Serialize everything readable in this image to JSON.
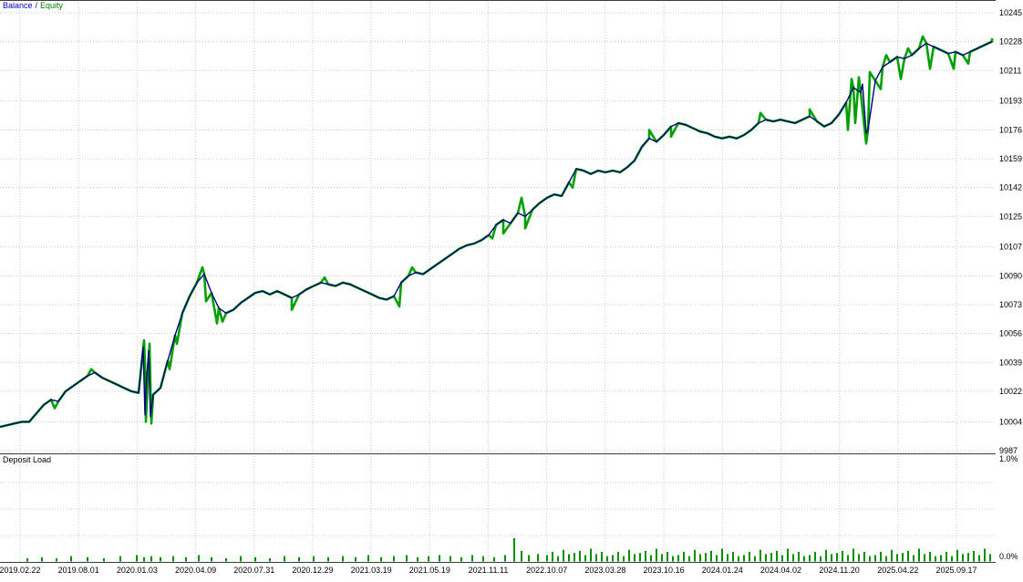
{
  "legend": {
    "balance_label": "Balance",
    "separator": "/",
    "equity_label": "Equity"
  },
  "deposit_panel": {
    "title": "Deposit Load",
    "max_label": "1.0%",
    "min_label": "0.0%"
  },
  "colors": {
    "balance": "#000080",
    "equity": "#00a000",
    "balance_legend": "#0000cc",
    "equity_legend": "#008000",
    "grid": "#c8c8c8",
    "border": "#3c3c3c",
    "bar": "#009000",
    "text": "#000000",
    "background": "#ffffff"
  },
  "chart_data": {
    "type": "line",
    "legend": [
      "Balance",
      "Equity"
    ],
    "ylim": [
      9987,
      10245
    ],
    "y_ticks": [
      10245,
      10228,
      10211,
      10193,
      10176,
      10159,
      10142,
      10125,
      10107,
      10090,
      10073,
      10056,
      10039,
      10022,
      10004,
      9987
    ],
    "x_labels": [
      "2019.02.22",
      "2019.08.01",
      "2020.01.03",
      "2020.04.09",
      "2020.07.31",
      "2020.12.29",
      "2021.03.19",
      "2021.05.19",
      "2021.11.11",
      "2022.10.07",
      "2023.03.28",
      "2023.10.16",
      "2024.01.24",
      "2024.04.02",
      "2024.11.20",
      "2025.04.22",
      "2025.09.17"
    ],
    "grid": true,
    "series": [
      {
        "name": "Balance",
        "color": "#000080",
        "x_start": 0,
        "x_step": 8,
        "values": [
          10001,
          10002,
          10003,
          10004,
          10004,
          10009,
          10014,
          10017,
          10016,
          10022,
          10025,
          10028,
          10031,
          10033,
          10030,
          10028,
          10026,
          10024,
          10022,
          10021,
          10023,
          10020,
          10024,
          10040,
          10055,
          10068,
          10078,
          10086,
          10091,
          10080,
          10071,
          10068,
          10070,
          10074,
          10077,
          10080,
          10081,
          10079,
          10081,
          10079,
          10077,
          10079,
          10082,
          10084,
          10086,
          10085,
          10084,
          10086,
          10085,
          10083,
          10081,
          10079,
          10077,
          10076,
          10078,
          10086,
          10090,
          10092,
          10091,
          10094,
          10097,
          10100,
          10103,
          10106,
          10108,
          10109,
          10111,
          10114,
          10120,
          10123,
          10121,
          10127,
          10125,
          10129,
          10133,
          10136,
          10138,
          10137,
          10145,
          10153,
          10152,
          10150,
          10152,
          10151,
          10152,
          10151,
          10154,
          10158,
          10166,
          10171,
          10169,
          10173,
          10178,
          10180,
          10179,
          10177,
          10175,
          10174,
          10172,
          10171,
          10172,
          10171,
          10173,
          10176,
          10180,
          10182,
          10181,
          10182,
          10181,
          10180,
          10182,
          10184,
          10181,
          10178,
          10180,
          10185,
          10192,
          10201,
          10198,
          10176,
          10205,
          10213,
          10216,
          10219,
          10218,
          10220,
          10224,
          10227,
          10225,
          10223,
          10221,
          10222,
          10220,
          10222,
          10224,
          10226,
          10228
        ],
        "spikes": [
          [
            157,
            10048
          ],
          [
            159,
            10008
          ],
          [
            163,
            10046
          ],
          [
            165,
            10007
          ],
          [
            946,
            10203
          ],
          [
            950,
            10174
          ]
        ]
      },
      {
        "name": "Equity",
        "color": "#00a000",
        "base": "Balance",
        "spikes": [
          [
            60,
            10012
          ],
          [
            100,
            10035
          ],
          [
            158,
            10052
          ],
          [
            160,
            10004
          ],
          [
            164,
            10050
          ],
          [
            166,
            10003
          ],
          [
            186,
            10035
          ],
          [
            194,
            10050
          ],
          [
            222,
            10095
          ],
          [
            226,
            10075
          ],
          [
            238,
            10062
          ],
          [
            244,
            10063
          ],
          [
            320,
            10070
          ],
          [
            356,
            10089
          ],
          [
            438,
            10072
          ],
          [
            452,
            10095
          ],
          [
            540,
            10112
          ],
          [
            552,
            10115
          ],
          [
            572,
            10136
          ],
          [
            576,
            10118
          ],
          [
            628,
            10142
          ],
          [
            712,
            10176
          ],
          [
            736,
            10172
          ],
          [
            834,
            10186
          ],
          [
            888,
            10188
          ],
          [
            930,
            10176
          ],
          [
            934,
            10206
          ],
          [
            938,
            10180
          ],
          [
            942,
            10207
          ],
          [
            950,
            10168
          ],
          [
            954,
            10210
          ],
          [
            966,
            10200
          ],
          [
            972,
            10220
          ],
          [
            988,
            10206
          ],
          [
            996,
            10224
          ],
          [
            1012,
            10231
          ],
          [
            1020,
            10212
          ],
          [
            1046,
            10212
          ],
          [
            1062,
            10215
          ],
          [
            1088,
            10230
          ]
        ]
      }
    ],
    "deposit_load": {
      "type": "bar",
      "title": "Deposit Load",
      "ylim": [
        0,
        1.0
      ],
      "unit": "%",
      "bars": [
        [
          30,
          0.03
        ],
        [
          46,
          0.04
        ],
        [
          62,
          0.03
        ],
        [
          78,
          0.05
        ],
        [
          96,
          0.04
        ],
        [
          114,
          0.03
        ],
        [
          132,
          0.05
        ],
        [
          150,
          0.06
        ],
        [
          158,
          0.04
        ],
        [
          166,
          0.05
        ],
        [
          176,
          0.04
        ],
        [
          190,
          0.05
        ],
        [
          204,
          0.04
        ],
        [
          218,
          0.06
        ],
        [
          232,
          0.04
        ],
        [
          248,
          0.03
        ],
        [
          264,
          0.05
        ],
        [
          280,
          0.04
        ],
        [
          296,
          0.03
        ],
        [
          312,
          0.05
        ],
        [
          328,
          0.04
        ],
        [
          344,
          0.05
        ],
        [
          360,
          0.04
        ],
        [
          376,
          0.05
        ],
        [
          390,
          0.04
        ],
        [
          404,
          0.06
        ],
        [
          418,
          0.04
        ],
        [
          432,
          0.05
        ],
        [
          446,
          0.06
        ],
        [
          458,
          0.04
        ],
        [
          470,
          0.05
        ],
        [
          482,
          0.06
        ],
        [
          494,
          0.05
        ],
        [
          506,
          0.04
        ],
        [
          518,
          0.06
        ],
        [
          530,
          0.05
        ],
        [
          542,
          0.04
        ],
        [
          554,
          0.06
        ],
        [
          564,
          0.22
        ],
        [
          572,
          0.1
        ],
        [
          580,
          0.06
        ],
        [
          590,
          0.07
        ],
        [
          600,
          0.06
        ],
        [
          606,
          0.09
        ],
        [
          612,
          0.05
        ],
        [
          618,
          0.11
        ],
        [
          624,
          0.07
        ],
        [
          630,
          0.08
        ],
        [
          636,
          0.1
        ],
        [
          642,
          0.06
        ],
        [
          648,
          0.12
        ],
        [
          654,
          0.07
        ],
        [
          660,
          0.09
        ],
        [
          666,
          0.05
        ],
        [
          672,
          0.06
        ],
        [
          678,
          0.09
        ],
        [
          684,
          0.05
        ],
        [
          690,
          0.11
        ],
        [
          696,
          0.07
        ],
        [
          702,
          0.08
        ],
        [
          708,
          0.1
        ],
        [
          714,
          0.06
        ],
        [
          720,
          0.12
        ],
        [
          726,
          0.07
        ],
        [
          732,
          0.09
        ],
        [
          738,
          0.05
        ],
        [
          744,
          0.06
        ],
        [
          750,
          0.09
        ],
        [
          756,
          0.05
        ],
        [
          762,
          0.11
        ],
        [
          768,
          0.07
        ],
        [
          774,
          0.08
        ],
        [
          780,
          0.1
        ],
        [
          786,
          0.06
        ],
        [
          792,
          0.12
        ],
        [
          798,
          0.07
        ],
        [
          804,
          0.09
        ],
        [
          810,
          0.05
        ],
        [
          816,
          0.06
        ],
        [
          822,
          0.09
        ],
        [
          828,
          0.05
        ],
        [
          834,
          0.11
        ],
        [
          840,
          0.07
        ],
        [
          846,
          0.08
        ],
        [
          852,
          0.1
        ],
        [
          858,
          0.06
        ],
        [
          864,
          0.12
        ],
        [
          870,
          0.07
        ],
        [
          876,
          0.09
        ],
        [
          882,
          0.05
        ],
        [
          888,
          0.06
        ],
        [
          894,
          0.09
        ],
        [
          900,
          0.05
        ],
        [
          906,
          0.11
        ],
        [
          912,
          0.07
        ],
        [
          918,
          0.08
        ],
        [
          924,
          0.1
        ],
        [
          930,
          0.06
        ],
        [
          936,
          0.12
        ],
        [
          942,
          0.07
        ],
        [
          948,
          0.09
        ],
        [
          954,
          0.05
        ],
        [
          960,
          0.06
        ],
        [
          966,
          0.09
        ],
        [
          972,
          0.05
        ],
        [
          978,
          0.11
        ],
        [
          984,
          0.07
        ],
        [
          990,
          0.08
        ],
        [
          996,
          0.1
        ],
        [
          1002,
          0.06
        ],
        [
          1008,
          0.12
        ],
        [
          1014,
          0.07
        ],
        [
          1020,
          0.09
        ],
        [
          1026,
          0.05
        ],
        [
          1032,
          0.06
        ],
        [
          1038,
          0.09
        ],
        [
          1044,
          0.05
        ],
        [
          1050,
          0.11
        ],
        [
          1056,
          0.07
        ],
        [
          1062,
          0.08
        ],
        [
          1068,
          0.1
        ],
        [
          1074,
          0.06
        ],
        [
          1080,
          0.12
        ],
        [
          1086,
          0.07
        ]
      ]
    }
  }
}
